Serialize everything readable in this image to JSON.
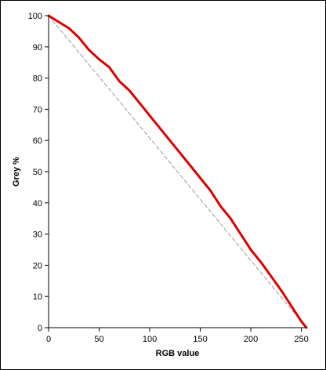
{
  "chart_data": {
    "type": "line",
    "title": "",
    "xlabel": "RGB value",
    "ylabel": "Grey %",
    "xlim": [
      0,
      255
    ],
    "ylim": [
      0,
      100
    ],
    "x_ticks": [
      0,
      50,
      100,
      150,
      200,
      250
    ],
    "y_ticks": [
      0,
      10,
      20,
      30,
      40,
      50,
      60,
      70,
      80,
      90,
      100
    ],
    "grid": false,
    "legend": "none",
    "series": [
      {
        "color": "#dd0000",
        "style": "solid",
        "x": [
          0,
          10,
          20,
          30,
          40,
          50,
          60,
          70,
          80,
          90,
          100,
          110,
          120,
          130,
          140,
          150,
          160,
          170,
          180,
          190,
          200,
          210,
          220,
          230,
          240,
          250,
          255
        ],
        "values": [
          100,
          98,
          96,
          93,
          89,
          86,
          83.5,
          79,
          76,
          72,
          68,
          64,
          60,
          56,
          52,
          48,
          44,
          39,
          35,
          30,
          25,
          21,
          16.5,
          12,
          7,
          2,
          0
        ]
      },
      {
        "color": "#9a9a9a",
        "style": "dashed",
        "x": [
          0,
          255
        ],
        "values": [
          100,
          0
        ]
      }
    ]
  }
}
